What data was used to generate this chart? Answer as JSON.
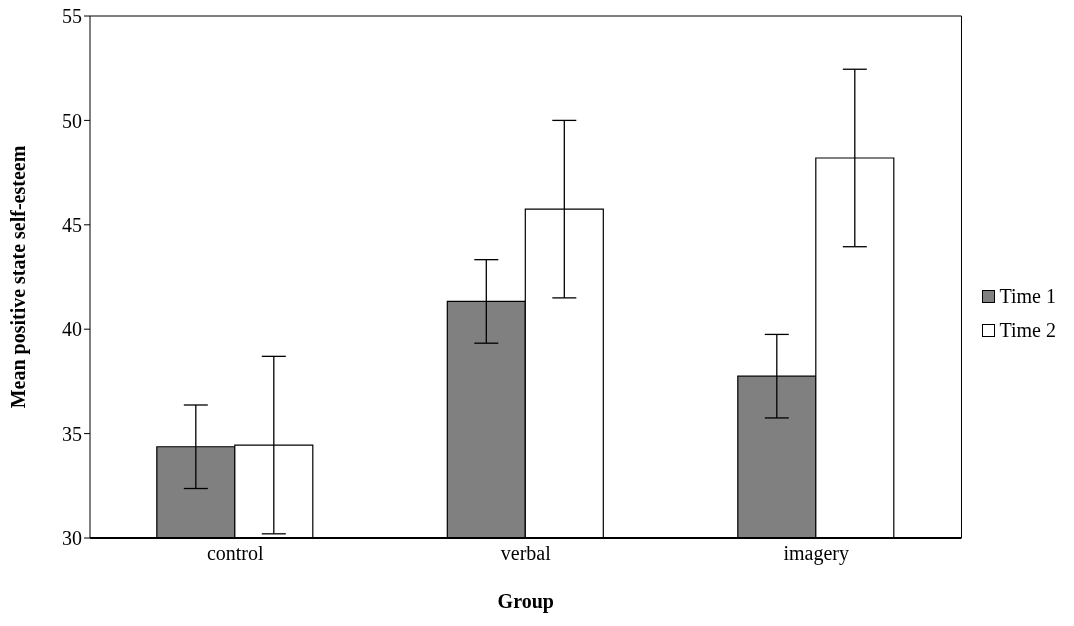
{
  "chart_data": {
    "type": "bar",
    "xlabel": "Group",
    "ylabel": "Mean positive state self-esteem",
    "categories": [
      "control",
      "verbal",
      "imagery"
    ],
    "series": [
      {
        "name": "Time 1",
        "color": "#808080",
        "values": [
          34.37,
          41.33,
          37.75
        ],
        "errors": [
          2,
          2,
          2
        ]
      },
      {
        "name": "Time 2",
        "color": "#ffffff",
        "values": [
          34.45,
          45.75,
          48.2
        ],
        "errors": [
          4.25,
          4.25,
          4.25
        ]
      }
    ],
    "ylim": [
      30,
      55
    ],
    "yticks": [
      30,
      35,
      40,
      45,
      50,
      55
    ],
    "grid": false,
    "legend": "right"
  }
}
